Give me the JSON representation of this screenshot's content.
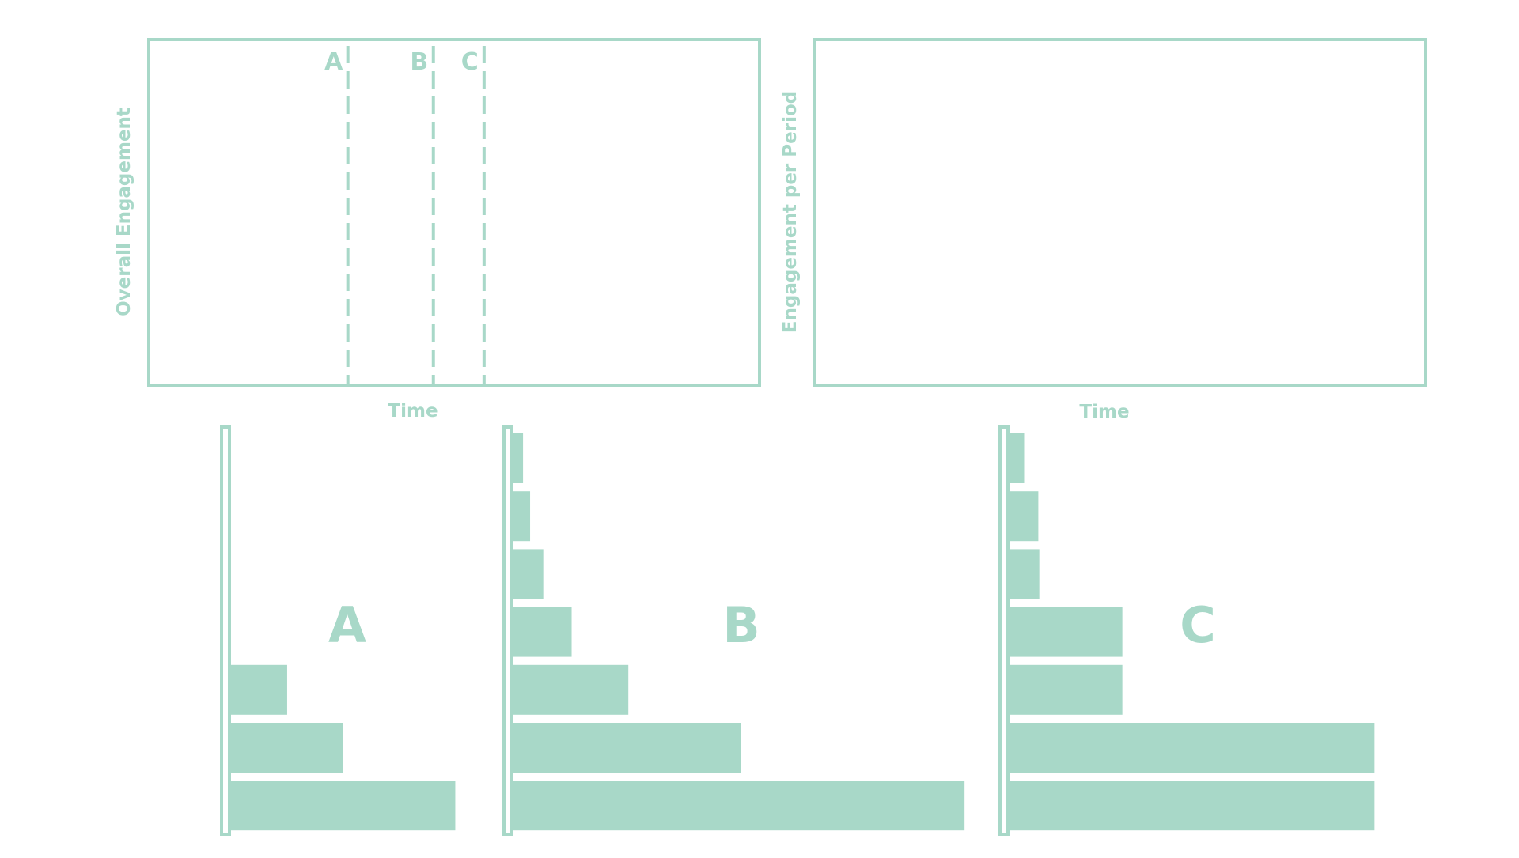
{
  "colors": {
    "accent": "#a8d8c8",
    "background": "#ffffff"
  },
  "chart_data": [
    {
      "type": "line",
      "id": "overall",
      "xlabel": "Time",
      "ylabel": "Overall Engagement",
      "xlim": [
        0,
        100
      ],
      "markers": [
        {
          "label": "A",
          "x": 32.6
        },
        {
          "label": "B",
          "x": 46.6
        },
        {
          "label": "C",
          "x": 54.9
        }
      ]
    },
    {
      "type": "line",
      "id": "per-period",
      "xlabel": "Time",
      "ylabel": "Engagement per Period"
    },
    {
      "type": "bar",
      "orientation": "horizontal",
      "id": "A",
      "label": "A",
      "values": [
        0,
        0,
        0,
        0,
        57,
        112,
        223
      ]
    },
    {
      "type": "bar",
      "orientation": "horizontal",
      "id": "B",
      "label": "B",
      "values": [
        11,
        18,
        31,
        59,
        115,
        226,
        447
      ]
    },
    {
      "type": "bar",
      "orientation": "horizontal",
      "id": "C",
      "label": "C",
      "values": [
        16,
        30,
        31,
        113,
        113,
        362,
        362
      ]
    }
  ]
}
